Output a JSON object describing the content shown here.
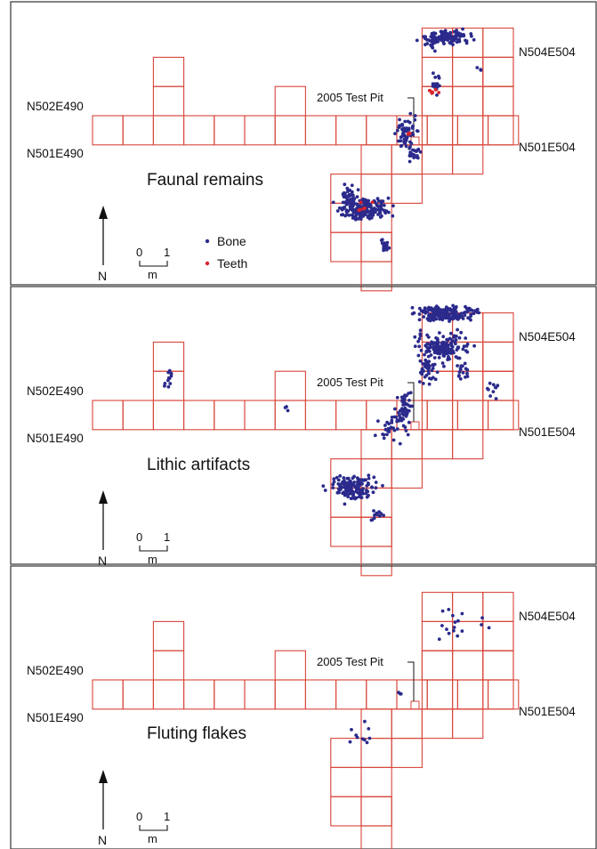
{
  "colors": {
    "grid": "#d8453a",
    "bone": "#2b2a8c",
    "teeth": "#d9232a",
    "frame": "#333333"
  },
  "legend": {
    "bone": "Bone",
    "teeth": "Teeth"
  },
  "scale_bar": {
    "zero": "0",
    "one": "1",
    "unit": "m"
  },
  "north_label": "N",
  "panels": [
    {
      "title": "Faunal remains",
      "labels": {
        "nw": "N502E490",
        "sw": "N501E490",
        "ne": "N504E504",
        "se": "N501E504",
        "test_pit": "2005 Test Pit"
      },
      "point_types": [
        "bone",
        "teeth"
      ]
    },
    {
      "title": "Lithic artifacts",
      "labels": {
        "nw": "N502E490",
        "sw": "N501E490",
        "ne": "N504E504",
        "se": "N501E504",
        "test_pit": "2005 Test Pit"
      },
      "point_types": [
        "artifact"
      ]
    },
    {
      "title": "Fluting flakes",
      "labels": {
        "nw": "N502E490",
        "sw": "N501E490",
        "ne": "N504E504",
        "se": "N501E504",
        "test_pit": "2005 Test Pit"
      },
      "point_types": [
        "flake"
      ]
    }
  ]
}
